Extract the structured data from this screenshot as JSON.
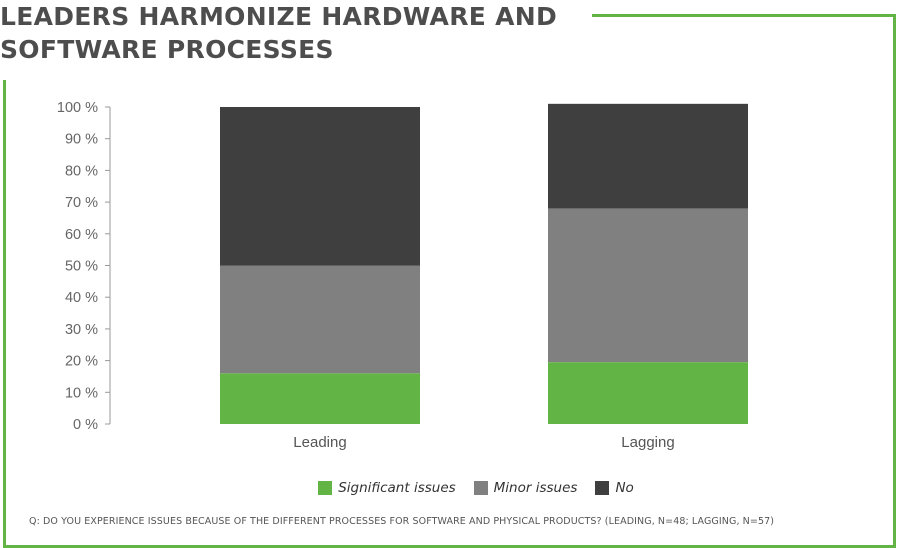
{
  "title": {
    "line1": "LEADERS HARMONIZE HARDWARE AND",
    "line2": "SOFTWARE PROCESSES"
  },
  "colors": {
    "significant": "#62b544",
    "minor": "#808080",
    "no": "#3f3f3f",
    "frame": "#62b544",
    "title": "#4d4d4d"
  },
  "chart_data": {
    "type": "bar",
    "stacked": true,
    "categories": [
      "Leading",
      "Lagging"
    ],
    "series": [
      {
        "name": "Significant issues",
        "values": [
          16,
          19.5
        ]
      },
      {
        "name": "Minor issues",
        "values": [
          34,
          48.5
        ]
      },
      {
        "name": "No",
        "values": [
          50,
          33
        ]
      }
    ],
    "y_ticks": [
      "0 %",
      "10 %",
      "20 %",
      "30 %",
      "40 %",
      "50 %",
      "60 %",
      "70 %",
      "80 %",
      "90 %",
      "100 %"
    ],
    "ylim": [
      0,
      100
    ],
    "grid": false,
    "legend_position": "bottom"
  },
  "legend": [
    {
      "label": "Significant issues",
      "color_key": "significant"
    },
    {
      "label": "Minor issues",
      "color_key": "minor"
    },
    {
      "label": "No",
      "color_key": "no"
    }
  ],
  "footnote": "Q: DO YOU EXPERIENCE ISSUES BECAUSE OF THE DIFFERENT PROCESSES FOR SOFTWARE AND PHYSICAL PRODUCTS? (LEADING, N=48; LAGGING, N=57)"
}
